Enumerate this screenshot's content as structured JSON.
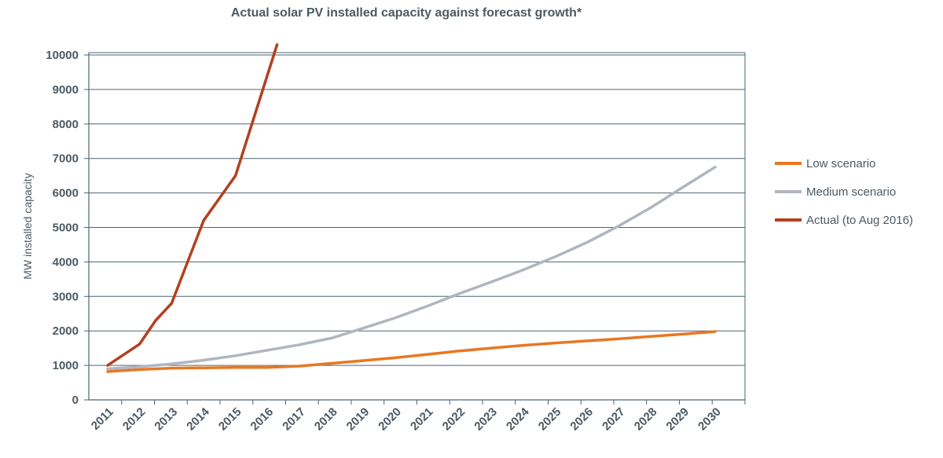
{
  "chart_data": {
    "type": "line",
    "title": "Actual solar PV installed capacity against forecast growth*",
    "ylabel": "MW installed capacity",
    "xlabel": "",
    "ylim": [
      0,
      10000
    ],
    "y_ticks": [
      "0",
      "1000",
      "2000",
      "3000",
      "4000",
      "5000",
      "6000",
      "7000",
      "8000",
      "9000",
      "10000"
    ],
    "x_ticks": [
      "2011",
      "2012",
      "2013",
      "2014",
      "2015",
      "2016",
      "2017",
      "2018",
      "2019",
      "2020",
      "2021",
      "2022",
      "2023",
      "2024",
      "2025",
      "2026",
      "2027",
      "2028",
      "2029",
      "2030"
    ],
    "grid": true,
    "legend_position": "right",
    "series": [
      {
        "name": "Low scenario",
        "color": "#e87722",
        "points": [
          [
            2011,
            820
          ],
          [
            2012,
            880
          ],
          [
            2013,
            920
          ],
          [
            2014,
            930
          ],
          [
            2015,
            940
          ],
          [
            2016,
            940
          ],
          [
            2017,
            980
          ],
          [
            2018,
            1060
          ],
          [
            2019,
            1140
          ],
          [
            2020,
            1220
          ],
          [
            2021,
            1320
          ],
          [
            2022,
            1420
          ],
          [
            2023,
            1500
          ],
          [
            2024,
            1580
          ],
          [
            2025,
            1650
          ],
          [
            2026,
            1710
          ],
          [
            2027,
            1770
          ],
          [
            2028,
            1840
          ],
          [
            2029,
            1910
          ],
          [
            2030,
            1980
          ]
        ]
      },
      {
        "name": "Medium scenario",
        "color": "#b0b6bf",
        "points": [
          [
            2011,
            900
          ],
          [
            2012,
            960
          ],
          [
            2013,
            1040
          ],
          [
            2014,
            1150
          ],
          [
            2015,
            1280
          ],
          [
            2016,
            1440
          ],
          [
            2017,
            1600
          ],
          [
            2018,
            1790
          ],
          [
            2019,
            2080
          ],
          [
            2020,
            2380
          ],
          [
            2021,
            2720
          ],
          [
            2022,
            3080
          ],
          [
            2023,
            3420
          ],
          [
            2024,
            3770
          ],
          [
            2025,
            4150
          ],
          [
            2026,
            4570
          ],
          [
            2027,
            5050
          ],
          [
            2028,
            5580
          ],
          [
            2029,
            6170
          ],
          [
            2030,
            6750
          ]
        ]
      },
      {
        "name": "Actual (to Aug 2016)",
        "color": "#b3401f",
        "points": [
          [
            2011,
            1000
          ],
          [
            2012,
            1620
          ],
          [
            2012.5,
            2300
          ],
          [
            2013,
            2800
          ],
          [
            2014,
            5200
          ],
          [
            2015,
            6500
          ],
          [
            2016.3,
            10300
          ]
        ]
      }
    ]
  }
}
